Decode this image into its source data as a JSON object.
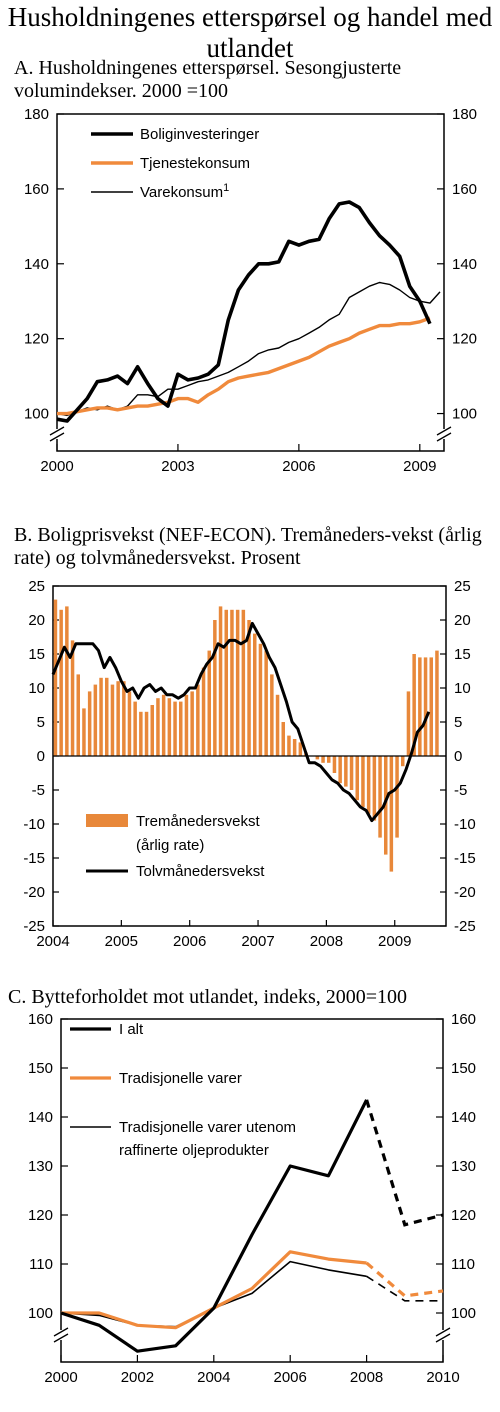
{
  "title": "Husholdningenes etterspørsel og handel med utlandet",
  "panels": {
    "a": {
      "title": "A.  Husholdningenes etterspørsel. Sesongjusterte volumindekser. 2000 =100"
    },
    "b": {
      "title": "B.  Boligprisvekst (NEF-ECON). Tremåneders-vekst (årlig rate) og tolvmånedersvekst. Prosent"
    },
    "c": {
      "title": "C. Bytteforholdet mot utlandet, indeks, 2000=100"
    }
  },
  "chart_data": [
    {
      "id": "a",
      "type": "line",
      "ylim": [
        90,
        180
      ],
      "yticks": [
        100,
        120,
        140,
        160,
        180
      ],
      "xlim": [
        2000,
        2009.6
      ],
      "xticks": [
        2000,
        2003,
        2006,
        2009
      ],
      "axis_break": true,
      "legend_position": "top-left",
      "series": [
        {
          "name": "Boliginvesteringer",
          "color": "#000000",
          "width": 3.6,
          "style": "solid",
          "points": [
            [
              2000,
              98.5
            ],
            [
              2000.25,
              98
            ],
            [
              2000.5,
              101
            ],
            [
              2000.75,
              104
            ],
            [
              2001,
              108.5
            ],
            [
              2001.25,
              109
            ],
            [
              2001.5,
              110
            ],
            [
              2001.75,
              108
            ],
            [
              2002,
              112.5
            ],
            [
              2002.25,
              108
            ],
            [
              2002.5,
              104
            ],
            [
              2002.75,
              102
            ],
            [
              2003,
              110.5
            ],
            [
              2003.25,
              109
            ],
            [
              2003.5,
              109.5
            ],
            [
              2003.75,
              110.5
            ],
            [
              2004,
              113
            ],
            [
              2004.25,
              125
            ],
            [
              2004.5,
              133
            ],
            [
              2004.75,
              137
            ],
            [
              2005,
              140
            ],
            [
              2005.25,
              140
            ],
            [
              2005.5,
              140.5
            ],
            [
              2005.75,
              146
            ],
            [
              2006,
              145
            ],
            [
              2006.25,
              146
            ],
            [
              2006.5,
              146.5
            ],
            [
              2006.75,
              152
            ],
            [
              2007,
              156
            ],
            [
              2007.25,
              156.5
            ],
            [
              2007.5,
              155
            ],
            [
              2007.75,
              151
            ],
            [
              2008,
              147.5
            ],
            [
              2008.25,
              145
            ],
            [
              2008.5,
              142
            ],
            [
              2008.75,
              134
            ],
            [
              2009,
              130
            ],
            [
              2009.25,
              124
            ]
          ]
        },
        {
          "name": "Tjenestekonsum",
          "color": "#F08A3C",
          "width": 3.4,
          "style": "solid",
          "points": [
            [
              2000,
              100
            ],
            [
              2000.25,
              100
            ],
            [
              2000.5,
              100.5
            ],
            [
              2000.75,
              101
            ],
            [
              2001,
              101.5
            ],
            [
              2001.25,
              101.5
            ],
            [
              2001.5,
              101
            ],
            [
              2001.75,
              101.5
            ],
            [
              2002,
              102
            ],
            [
              2002.25,
              102
            ],
            [
              2002.5,
              102.5
            ],
            [
              2002.75,
              103
            ],
            [
              2003,
              104
            ],
            [
              2003.25,
              104
            ],
            [
              2003.5,
              103
            ],
            [
              2003.75,
              105
            ],
            [
              2004,
              106.5
            ],
            [
              2004.25,
              108.5
            ],
            [
              2004.5,
              109.5
            ],
            [
              2004.75,
              110
            ],
            [
              2005,
              110.5
            ],
            [
              2005.25,
              111
            ],
            [
              2005.5,
              112
            ],
            [
              2005.75,
              113
            ],
            [
              2006,
              114
            ],
            [
              2006.25,
              115
            ],
            [
              2006.5,
              116.5
            ],
            [
              2006.75,
              118
            ],
            [
              2007,
              119
            ],
            [
              2007.25,
              120
            ],
            [
              2007.5,
              121.5
            ],
            [
              2007.75,
              122.5
            ],
            [
              2008,
              123.5
            ],
            [
              2008.25,
              123.5
            ],
            [
              2008.5,
              124
            ],
            [
              2008.75,
              124
            ],
            [
              2009,
              124.5
            ],
            [
              2009.25,
              125.5
            ]
          ]
        },
        {
          "name": "Varekonsum",
          "footnote": "1",
          "color": "#000000",
          "width": 1.4,
          "style": "solid",
          "points": [
            [
              2000,
              100
            ],
            [
              2000.25,
              99.5
            ],
            [
              2000.5,
              100.5
            ],
            [
              2000.75,
              101.5
            ],
            [
              2001,
              101
            ],
            [
              2001.25,
              102
            ],
            [
              2001.5,
              101
            ],
            [
              2001.75,
              102
            ],
            [
              2002,
              105
            ],
            [
              2002.25,
              105
            ],
            [
              2002.5,
              104.5
            ],
            [
              2002.75,
              106.5
            ],
            [
              2003,
              106.5
            ],
            [
              2003.25,
              107.5
            ],
            [
              2003.5,
              108.5
            ],
            [
              2003.75,
              109
            ],
            [
              2004,
              110
            ],
            [
              2004.25,
              111
            ],
            [
              2004.5,
              112.5
            ],
            [
              2004.75,
              114
            ],
            [
              2005,
              116
            ],
            [
              2005.25,
              117
            ],
            [
              2005.5,
              117.5
            ],
            [
              2005.75,
              119
            ],
            [
              2006,
              120
            ],
            [
              2006.25,
              121.5
            ],
            [
              2006.5,
              123
            ],
            [
              2006.75,
              125
            ],
            [
              2007,
              126.5
            ],
            [
              2007.25,
              131
            ],
            [
              2007.5,
              132.5
            ],
            [
              2007.75,
              134
            ],
            [
              2008,
              135
            ],
            [
              2008.25,
              134.5
            ],
            [
              2008.5,
              133
            ],
            [
              2008.75,
              131
            ],
            [
              2009,
              130
            ],
            [
              2009.25,
              129.5
            ],
            [
              2009.5,
              132.5
            ]
          ]
        }
      ]
    },
    {
      "id": "b",
      "type": "bar+line",
      "ylim": [
        -25,
        25
      ],
      "yticks": [
        -25,
        -20,
        -15,
        -10,
        -5,
        0,
        5,
        10,
        15,
        20,
        25
      ],
      "xlim": [
        2004,
        2009.75
      ],
      "xticks": [
        2004,
        2005,
        2006,
        2007,
        2008,
        2009
      ],
      "legend_position": "bottom-left",
      "series": [
        {
          "name": "Tremånedersvekst",
          "name_line2": "(årlig rate)",
          "kind": "bar",
          "color": "#E8883A",
          "start": 2004,
          "step": 0.0833,
          "values": [
            23,
            21.5,
            22,
            17,
            12,
            7,
            9.5,
            10.5,
            11.5,
            11.5,
            10.5,
            11,
            11,
            9.5,
            8,
            6.5,
            6.5,
            7.5,
            8.5,
            9,
            8.5,
            8,
            8,
            9,
            9.5,
            10.5,
            13,
            15.5,
            20,
            22,
            21.5,
            21.5,
            21.5,
            21.5,
            20,
            18,
            16.5,
            15.5,
            12,
            9,
            5,
            3,
            2.5,
            2,
            0.5,
            0,
            -0.5,
            -1,
            -1,
            -2.5,
            -4,
            -4.5,
            -5,
            -6.5,
            -7.5,
            -8.5,
            -9.5,
            -12,
            -14.5,
            -17,
            -12,
            -1.5,
            9.5,
            15,
            14.5,
            14.5,
            14.5,
            15.5
          ]
        },
        {
          "name": "Tolvmånedersvekst",
          "kind": "line",
          "color": "#000000",
          "start": 2004,
          "step": 0.0833,
          "values": [
            12,
            14,
            16,
            14.5,
            16.5,
            16.5,
            16.5,
            16.5,
            15.5,
            13,
            14.5,
            13,
            11,
            9.5,
            10,
            8.5,
            10,
            10.5,
            9.5,
            10,
            9,
            9,
            8.5,
            9,
            10,
            10,
            12,
            13.5,
            14.5,
            16.5,
            16,
            17,
            17,
            16.5,
            17,
            19.5,
            18,
            16.5,
            14.5,
            13,
            10.5,
            8,
            5,
            4,
            1.5,
            -1,
            -1,
            -1.5,
            -2.5,
            -3.5,
            -4,
            -5,
            -5.5,
            -6.5,
            -7.5,
            -8,
            -9.5,
            -8.5,
            -7.5,
            -5.5,
            -5,
            -4,
            -2,
            0.5,
            3.5,
            4.5,
            6.5
          ]
        }
      ]
    },
    {
      "id": "c",
      "type": "line",
      "ylim": [
        90,
        160
      ],
      "yticks": [
        100,
        110,
        120,
        130,
        140,
        150,
        160
      ],
      "xlim": [
        2000,
        2010
      ],
      "xticks": [
        2000,
        2002,
        2004,
        2006,
        2008,
        2010
      ],
      "axis_break": true,
      "legend_position": "top-left",
      "series": [
        {
          "name": "I alt",
          "color": "#000000",
          "width": 3.2,
          "solid": [
            [
              2000,
              100
            ],
            [
              2001,
              97.5
            ],
            [
              2002,
              92.2
            ],
            [
              2003,
              93.3
            ],
            [
              2004,
              101
            ],
            [
              2005,
              116
            ],
            [
              2006,
              130
            ],
            [
              2007,
              128
            ],
            [
              2008,
              143.5
            ]
          ],
          "dashed": [
            [
              2008,
              143.5
            ],
            [
              2009,
              118
            ],
            [
              2010,
              120
            ]
          ]
        },
        {
          "name": "Tradisjonelle varer",
          "color": "#F08A3C",
          "width": 3.2,
          "solid": [
            [
              2000,
              100
            ],
            [
              2001,
              100
            ],
            [
              2002,
              97.5
            ],
            [
              2003,
              97
            ],
            [
              2004,
              101
            ],
            [
              2005,
              105
            ],
            [
              2006,
              112.5
            ],
            [
              2007,
              111
            ],
            [
              2008,
              110.2
            ]
          ],
          "dashed": [
            [
              2008,
              110.2
            ],
            [
              2009,
              103.5
            ],
            [
              2010,
              104.5
            ]
          ]
        },
        {
          "name": "Tradisjonelle varer utenom",
          "name_line2": "raffinerte oljeprodukter",
          "color": "#000000",
          "width": 1.6,
          "solid": [
            [
              2000,
              100
            ],
            [
              2001,
              99.5
            ],
            [
              2002,
              97.5
            ],
            [
              2003,
              97.2
            ],
            [
              2004,
              101
            ],
            [
              2005,
              104
            ],
            [
              2006,
              110.5
            ],
            [
              2007,
              108.8
            ],
            [
              2008,
              107.5
            ]
          ],
          "dashed": [
            [
              2008,
              107.5
            ],
            [
              2009,
              102.5
            ],
            [
              2010,
              102.5
            ]
          ]
        }
      ]
    }
  ]
}
